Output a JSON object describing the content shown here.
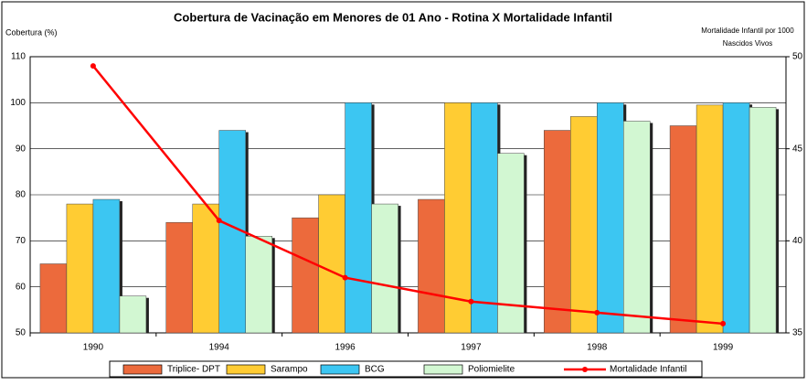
{
  "chart_data": {
    "type": "bar",
    "title": "Cobertura de  Vacinação em Menores de 01 Ano - Rotina  X  Mortalidade  Infantil",
    "y_label": "Cobertura (%)",
    "y2_label": [
      "Mortalidade Infantil por 1000",
      "Nascidos Vivos"
    ],
    "categories": [
      "1990",
      "1994",
      "1996",
      "1997",
      "1998",
      "1999"
    ],
    "ylim": [
      50,
      110
    ],
    "yticks": [
      50,
      60,
      70,
      80,
      90,
      100,
      110
    ],
    "y2lim": [
      35,
      50
    ],
    "y2ticks": [
      35,
      40,
      45,
      50
    ],
    "grid": true,
    "legend": "bottom",
    "series": [
      {
        "name": "Triplice- DPT",
        "color": "#ec6a3c",
        "values": [
          65,
          74,
          75,
          79,
          94,
          95
        ]
      },
      {
        "name": "Sarampo",
        "color": "#ffcc33",
        "values": [
          78,
          78,
          80,
          100,
          97,
          99.5
        ]
      },
      {
        "name": "BCG",
        "color": "#3cc6f2",
        "values": [
          79,
          94,
          100,
          100,
          100,
          100
        ]
      },
      {
        "name": "Poliomielite",
        "color": "#d2f7d2",
        "values": [
          58,
          71,
          78,
          89,
          96,
          99
        ]
      },
      {
        "name": "Mortalidade Infantil",
        "type": "line",
        "axis": "y2",
        "color": "#ff0000",
        "values": [
          49.5,
          41.1,
          38.0,
          36.7,
          36.1,
          35.5
        ]
      }
    ]
  }
}
